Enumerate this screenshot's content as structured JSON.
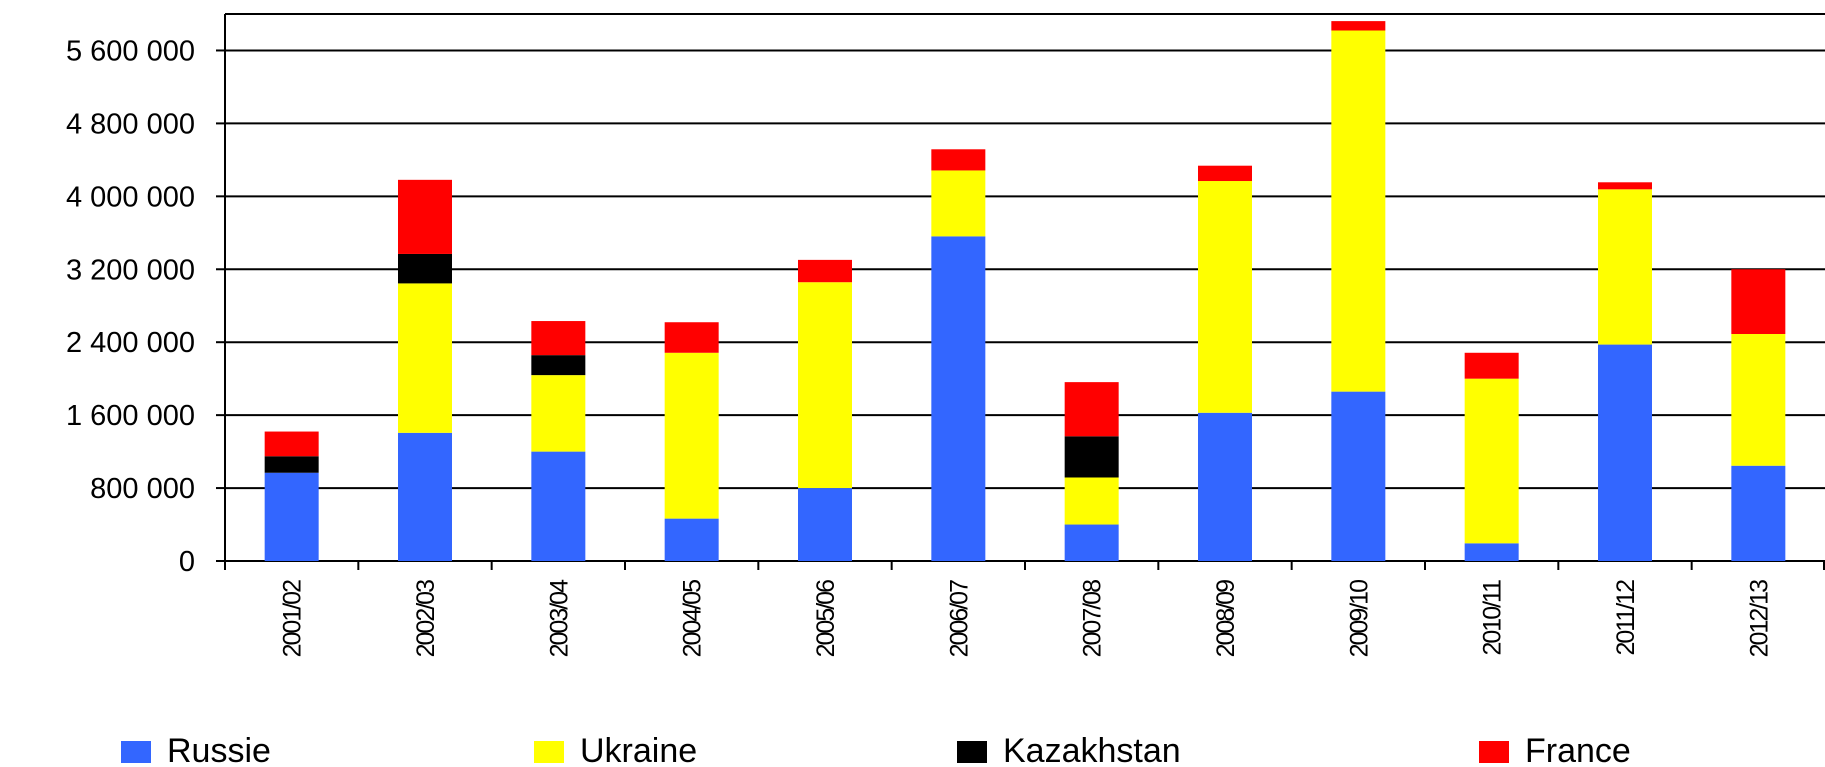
{
  "chart_data": {
    "type": "bar",
    "stacked": true,
    "categories": [
      "2001/02",
      "2002/03",
      "2003/04",
      "2004/05",
      "2005/06",
      "2006/07",
      "2007/08",
      "2008/09",
      "2009/10",
      "2010/11",
      "2011/12",
      "2012/13"
    ],
    "series": [
      {
        "name": "Russie",
        "color": "#3366ff",
        "values": [
          968000,
          1406000,
          1200000,
          465000,
          800000,
          3561000,
          400000,
          1626000,
          1858000,
          194000,
          2374000,
          1045000
        ]
      },
      {
        "name": "Ukraine",
        "color": "#ffff00",
        "values": [
          0,
          1639000,
          839000,
          1819000,
          2258000,
          723000,
          516000,
          2542000,
          3961000,
          1806000,
          1703000,
          1445000
        ]
      },
      {
        "name": "Kazakhstan",
        "color": "#000000",
        "values": [
          181000,
          323000,
          219000,
          0,
          0,
          0,
          452000,
          0,
          0,
          0,
          0,
          0
        ]
      },
      {
        "name": "France",
        "color": "#ff0000",
        "values": [
          271000,
          813000,
          374000,
          335000,
          245000,
          232000,
          594000,
          168000,
          103000,
          284000,
          77000,
          710000
        ]
      }
    ],
    "ylim": [
      0,
      6000000
    ],
    "yticks": [
      0,
      {
        "value": 800000,
        "label": "800 000"
      },
      {
        "value": 1600000,
        "label": "1 600 000"
      },
      {
        "value": 2400000,
        "label": "2 400 000"
      },
      {
        "value": 3200000,
        "label": "3 200 000"
      },
      {
        "value": 4000000,
        "label": "4 000 000"
      },
      {
        "value": 4800000,
        "label": "4 800 000"
      },
      {
        "value": 5600000,
        "label": "5 600 000"
      }
    ],
    "grid": true,
    "legend": "bottom"
  }
}
